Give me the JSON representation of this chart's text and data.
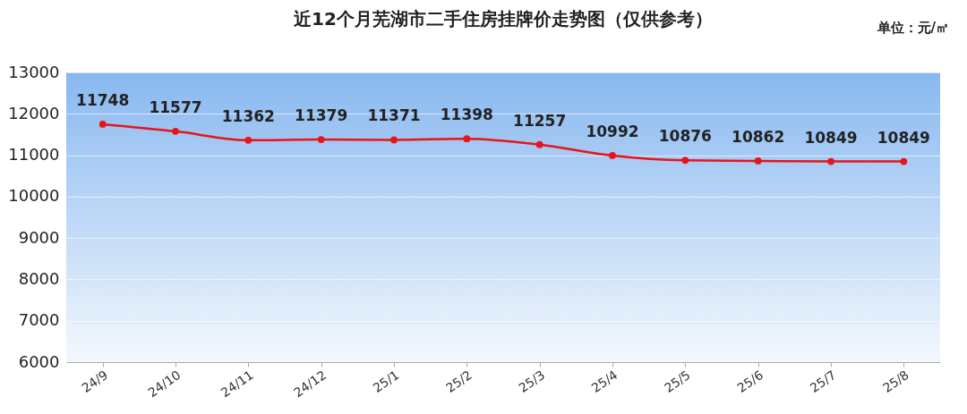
{
  "chart_data": {
    "type": "line",
    "title": "近12个月芜湖市二手住房挂牌价走势图（仅供参考）",
    "annotations": [
      "单位：元/㎡"
    ],
    "categories": [
      "24/9",
      "24/10",
      "24/11",
      "24/12",
      "25/1",
      "25/2",
      "25/3",
      "25/4",
      "25/5",
      "25/6",
      "25/7",
      "25/8"
    ],
    "series": [
      {
        "color": "#e8141b",
        "values": [
          11748,
          11577,
          11362,
          11379,
          11371,
          11398,
          11257,
          10992,
          10876,
          10862,
          10849,
          10849
        ]
      }
    ],
    "ylim": [
      6000,
      13000
    ],
    "yticks": [
      6000,
      7000,
      8000,
      9000,
      10000,
      11000,
      12000,
      13000
    ],
    "grid": "y",
    "marker": "circle",
    "line_style": "solid",
    "data_labels": true
  }
}
